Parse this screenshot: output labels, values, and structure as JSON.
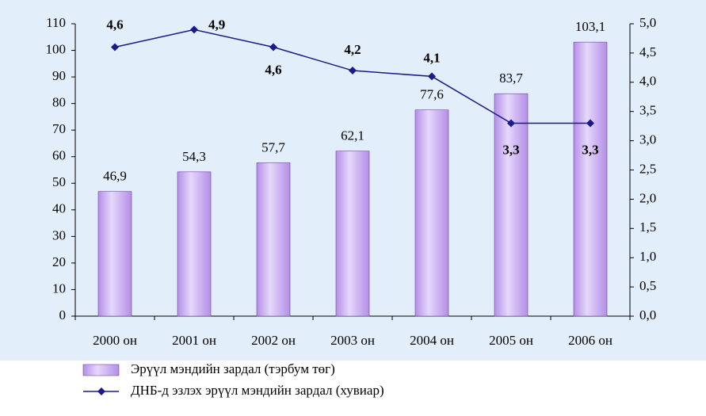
{
  "chart_data": {
    "type": "bar_line",
    "categories": [
      "2000 он",
      "2001 он",
      "2002 он",
      "2003 он",
      "2004 он",
      "2005 он",
      "2006 он"
    ],
    "series": [
      {
        "name": "Эрүүл мэндийн зардал (тэрбум төг)",
        "color": "#b48ee6",
        "type": "bar",
        "values": [
          46.9,
          54.3,
          57.7,
          62.1,
          77.6,
          83.7,
          103.1
        ],
        "value_labels": [
          "46,9",
          "54,3",
          "57,7",
          "62,1",
          "77,6",
          "83,7",
          "103,1"
        ]
      },
      {
        "name": "ДНБ-д эзлэх эрүүл мэндийн зардал (хувиар)",
        "color": "#1a1a8c",
        "type": "line",
        "axis": "y2",
        "values": [
          4.6,
          4.9,
          4.6,
          4.2,
          4.1,
          3.3,
          3.3
        ],
        "value_labels": [
          "4,6",
          "4,9",
          "4,6",
          "4,2",
          "4,1",
          "3,3",
          "3,3"
        ]
      }
    ],
    "ylim": [
      0,
      110
    ],
    "yticks": [
      0,
      10,
      20,
      30,
      40,
      50,
      60,
      70,
      80,
      90,
      100,
      110
    ],
    "y2lim": [
      0,
      5
    ],
    "y2ticks": [
      {
        "value": 0,
        "label": "0,0"
      },
      {
        "value": 0.5,
        "label": "0,5"
      },
      {
        "value": 1,
        "label": "1,0"
      },
      {
        "value": 1.5,
        "label": "1,5"
      },
      {
        "value": 2,
        "label": "2,0"
      },
      {
        "value": 2.5,
        "label": "2,5"
      },
      {
        "value": 3,
        "label": "3,0"
      },
      {
        "value": 3.5,
        "label": "3,5"
      },
      {
        "value": 4,
        "label": "4,0"
      },
      {
        "value": 4.5,
        "label": "4,5"
      },
      {
        "value": 5,
        "label": "5,0"
      }
    ],
    "legend": "bottom-left"
  }
}
